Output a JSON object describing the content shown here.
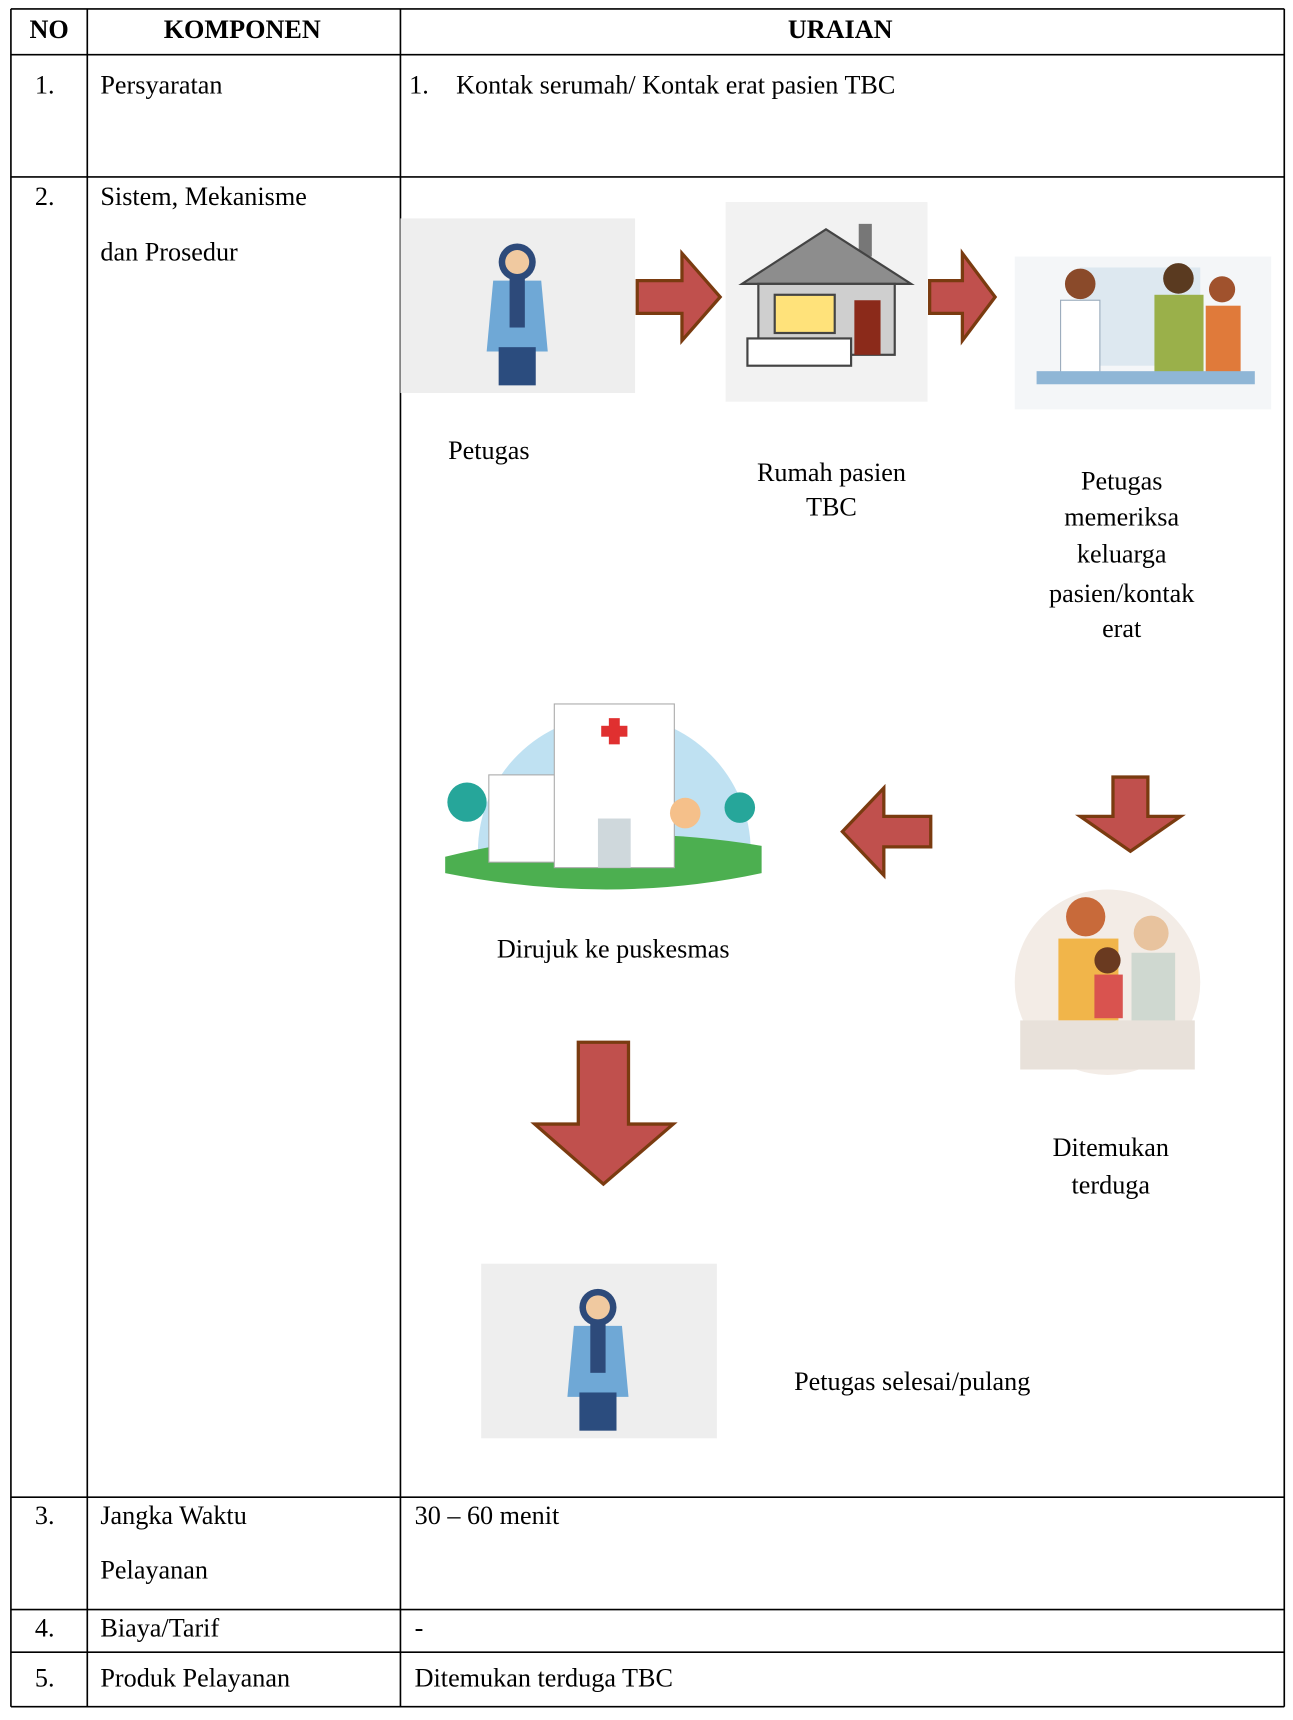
{
  "table": {
    "headers": [
      "NO",
      "KOMPONEN",
      "URAIAN"
    ],
    "rows": [
      {
        "no": "1.",
        "komponen": [
          "Persyaratan"
        ],
        "uraian_no": "1.",
        "uraian": "Kontak serumah/ Kontak erat pasien TBC"
      },
      {
        "no": "2.",
        "komponen": [
          "Sistem, Mekanisme",
          "dan Prosedur"
        ]
      },
      {
        "no": "3.",
        "komponen": [
          "Jangka Waktu",
          "Pelayanan"
        ],
        "uraian": "30 – 60 menit"
      },
      {
        "no": "4.",
        "komponen": [
          "Biaya/Tarif"
        ],
        "uraian": "-"
      },
      {
        "no": "5.",
        "komponen": [
          "Produk Pelayanan"
        ],
        "uraian": "Ditemukan terduga TBC"
      }
    ]
  },
  "diagram": {
    "nodes": [
      {
        "label": [
          "Petugas"
        ]
      },
      {
        "label": [
          "Rumah pasien",
          "TBC"
        ]
      },
      {
        "label": [
          "Petugas",
          "memeriksa",
          "keluarga",
          "pasien/kontak",
          "erat"
        ]
      },
      {
        "label": [
          "Ditemukan",
          "terduga"
        ]
      },
      {
        "label": [
          "Dirujuk ke puskesmas"
        ]
      },
      {
        "label": [
          "Petugas selesai/pulang"
        ]
      }
    ]
  }
}
